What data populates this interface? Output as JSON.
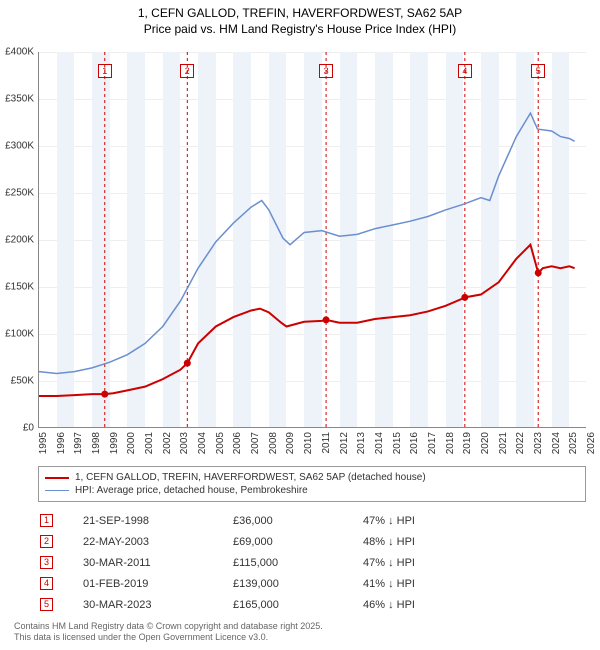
{
  "title": "1, CEFN GALLOD, TREFIN, HAVERFORDWEST, SA62 5AP",
  "subtitle": "Price paid vs. HM Land Registry's House Price Index (HPI)",
  "chart": {
    "type": "line",
    "x_start_year": 1995,
    "x_end_year": 2026,
    "ylim": [
      0,
      400000
    ],
    "ytick_step": 50000,
    "yticks": [
      "£0",
      "£50K",
      "£100K",
      "£150K",
      "£200K",
      "£250K",
      "£300K",
      "£350K",
      "£400K"
    ],
    "xticks": [
      "1995",
      "1996",
      "1997",
      "1998",
      "1999",
      "2000",
      "2001",
      "2002",
      "2003",
      "2004",
      "2005",
      "2006",
      "2007",
      "2008",
      "2009",
      "2010",
      "2011",
      "2012",
      "2013",
      "2014",
      "2015",
      "2016",
      "2017",
      "2018",
      "2019",
      "2020",
      "2021",
      "2022",
      "2023",
      "2024",
      "2025",
      "2026"
    ],
    "background_color": "#ffffff",
    "band_color": "#eef3fa",
    "grid_color": "#eeeeee",
    "axis_color": "#888888",
    "series": [
      {
        "name": "1, CEFN GALLOD, TREFIN, HAVERFORDWEST, SA62 5AP (detached house)",
        "color": "#cc0000",
        "line_width": 2,
        "data": [
          [
            1995.0,
            34000
          ],
          [
            1996.0,
            34000
          ],
          [
            1997.0,
            35000
          ],
          [
            1998.0,
            36000
          ],
          [
            1998.72,
            36000
          ],
          [
            1999.2,
            37000
          ],
          [
            2000.0,
            40000
          ],
          [
            2001.0,
            44000
          ],
          [
            2002.0,
            52000
          ],
          [
            2003.0,
            62000
          ],
          [
            2003.39,
            69000
          ],
          [
            2004.0,
            90000
          ],
          [
            2005.0,
            108000
          ],
          [
            2006.0,
            118000
          ],
          [
            2007.0,
            125000
          ],
          [
            2007.5,
            127000
          ],
          [
            2008.0,
            123000
          ],
          [
            2008.7,
            112000
          ],
          [
            2009.0,
            108000
          ],
          [
            2010.0,
            113000
          ],
          [
            2011.0,
            114000
          ],
          [
            2011.24,
            115000
          ],
          [
            2012.0,
            112000
          ],
          [
            2013.0,
            112000
          ],
          [
            2014.0,
            116000
          ],
          [
            2015.0,
            118000
          ],
          [
            2016.0,
            120000
          ],
          [
            2017.0,
            124000
          ],
          [
            2018.0,
            130000
          ],
          [
            2019.0,
            138000
          ],
          [
            2019.09,
            139000
          ],
          [
            2020.0,
            142000
          ],
          [
            2021.0,
            155000
          ],
          [
            2022.0,
            180000
          ],
          [
            2022.8,
            195000
          ],
          [
            2023.24,
            165000
          ],
          [
            2023.5,
            170000
          ],
          [
            2024.0,
            172000
          ],
          [
            2024.5,
            170000
          ],
          [
            2025.0,
            172000
          ],
          [
            2025.3,
            170000
          ]
        ]
      },
      {
        "name": "HPI: Average price, detached house, Pembrokeshire",
        "color": "#6a8fd0",
        "line_width": 1.5,
        "data": [
          [
            1995.0,
            60000
          ],
          [
            1996.0,
            58000
          ],
          [
            1997.0,
            60000
          ],
          [
            1998.0,
            64000
          ],
          [
            1999.0,
            70000
          ],
          [
            2000.0,
            78000
          ],
          [
            2001.0,
            90000
          ],
          [
            2002.0,
            108000
          ],
          [
            2003.0,
            135000
          ],
          [
            2004.0,
            170000
          ],
          [
            2005.0,
            198000
          ],
          [
            2006.0,
            218000
          ],
          [
            2007.0,
            235000
          ],
          [
            2007.6,
            242000
          ],
          [
            2008.0,
            232000
          ],
          [
            2008.8,
            202000
          ],
          [
            2009.2,
            195000
          ],
          [
            2010.0,
            208000
          ],
          [
            2011.0,
            210000
          ],
          [
            2012.0,
            204000
          ],
          [
            2013.0,
            206000
          ],
          [
            2014.0,
            212000
          ],
          [
            2015.0,
            216000
          ],
          [
            2016.0,
            220000
          ],
          [
            2017.0,
            225000
          ],
          [
            2018.0,
            232000
          ],
          [
            2019.0,
            238000
          ],
          [
            2020.0,
            245000
          ],
          [
            2020.5,
            242000
          ],
          [
            2021.0,
            268000
          ],
          [
            2022.0,
            310000
          ],
          [
            2022.8,
            335000
          ],
          [
            2023.2,
            318000
          ],
          [
            2024.0,
            316000
          ],
          [
            2024.5,
            310000
          ],
          [
            2025.0,
            308000
          ],
          [
            2025.3,
            305000
          ]
        ]
      }
    ],
    "markers": [
      {
        "n": "1",
        "year": 1998.72,
        "color": "#cc0000"
      },
      {
        "n": "2",
        "year": 2003.39,
        "color": "#cc0000"
      },
      {
        "n": "3",
        "year": 2011.24,
        "color": "#cc0000"
      },
      {
        "n": "4",
        "year": 2019.09,
        "color": "#cc0000"
      },
      {
        "n": "5",
        "year": 2023.24,
        "color": "#cc0000"
      }
    ],
    "sale_points": [
      [
        1998.72,
        36000
      ],
      [
        2003.39,
        69000
      ],
      [
        2011.24,
        115000
      ],
      [
        2019.09,
        139000
      ],
      [
        2023.24,
        165000
      ]
    ]
  },
  "legend": {
    "rows": [
      {
        "color": "#cc0000",
        "width": 2,
        "label": "1, CEFN GALLOD, TREFIN, HAVERFORDWEST, SA62 5AP (detached house)"
      },
      {
        "color": "#6a8fd0",
        "width": 1.5,
        "label": "HPI: Average price, detached house, Pembrokeshire"
      }
    ]
  },
  "table": {
    "rows": [
      {
        "n": "1",
        "color": "#cc0000",
        "date": "21-SEP-1998",
        "price": "£36,000",
        "pct": "47% ↓ HPI"
      },
      {
        "n": "2",
        "color": "#cc0000",
        "date": "22-MAY-2003",
        "price": "£69,000",
        "pct": "48% ↓ HPI"
      },
      {
        "n": "3",
        "color": "#cc0000",
        "date": "30-MAR-2011",
        "price": "£115,000",
        "pct": "47% ↓ HPI"
      },
      {
        "n": "4",
        "color": "#cc0000",
        "date": "01-FEB-2019",
        "price": "£139,000",
        "pct": "41% ↓ HPI"
      },
      {
        "n": "5",
        "color": "#cc0000",
        "date": "30-MAR-2023",
        "price": "£165,000",
        "pct": "46% ↓ HPI"
      }
    ]
  },
  "footer": {
    "line1": "Contains HM Land Registry data © Crown copyright and database right 2025.",
    "line2": "This data is licensed under the Open Government Licence v3.0."
  }
}
